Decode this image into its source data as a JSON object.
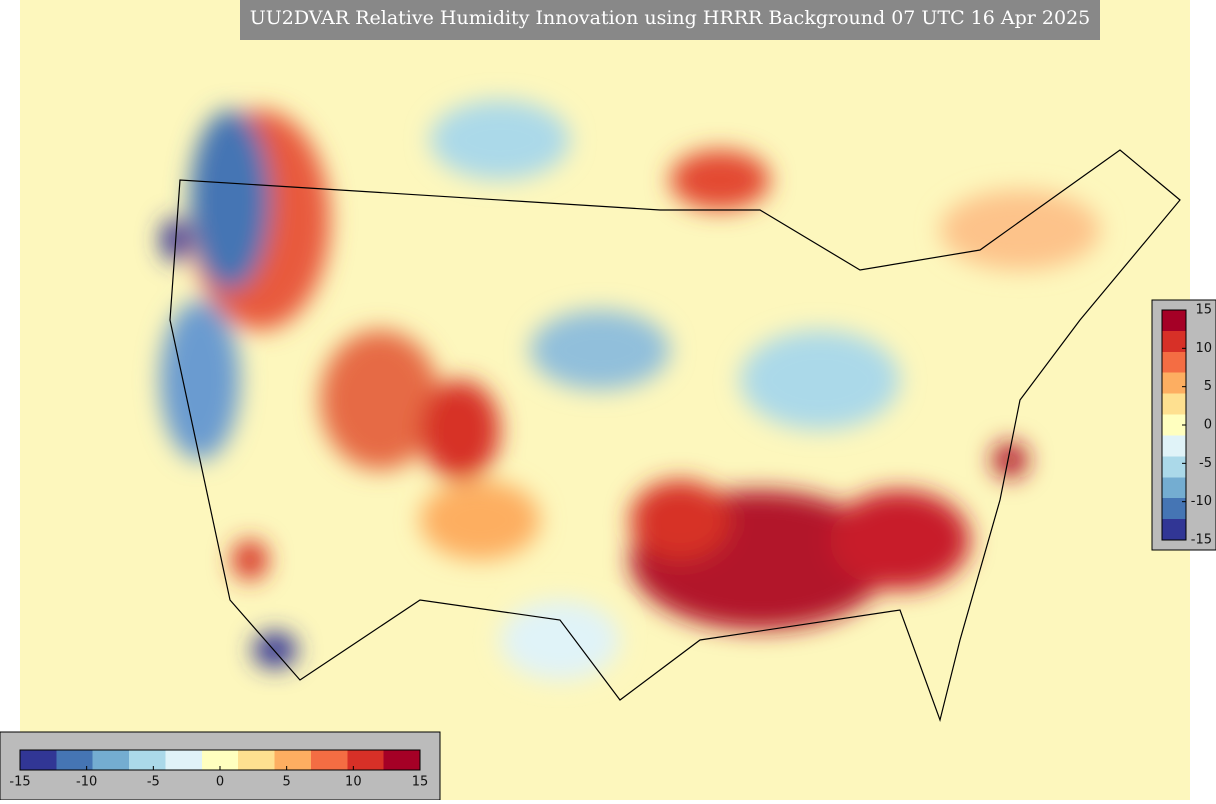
{
  "title": "UU2DVAR Relative Humidity Innovation using HRRR Background 07 UTC 16 Apr 2025",
  "colorbar": {
    "lim": [
      -15,
      15
    ],
    "ticks": [
      -15,
      -10,
      -5,
      0,
      5,
      10,
      15
    ],
    "colors": [
      "#313695",
      "#4575b4",
      "#74add1",
      "#abd9e9",
      "#e0f3f8",
      "#ffffbf",
      "#fee090",
      "#fdae61",
      "#f46d43",
      "#d73027",
      "#a50026"
    ]
  }
}
